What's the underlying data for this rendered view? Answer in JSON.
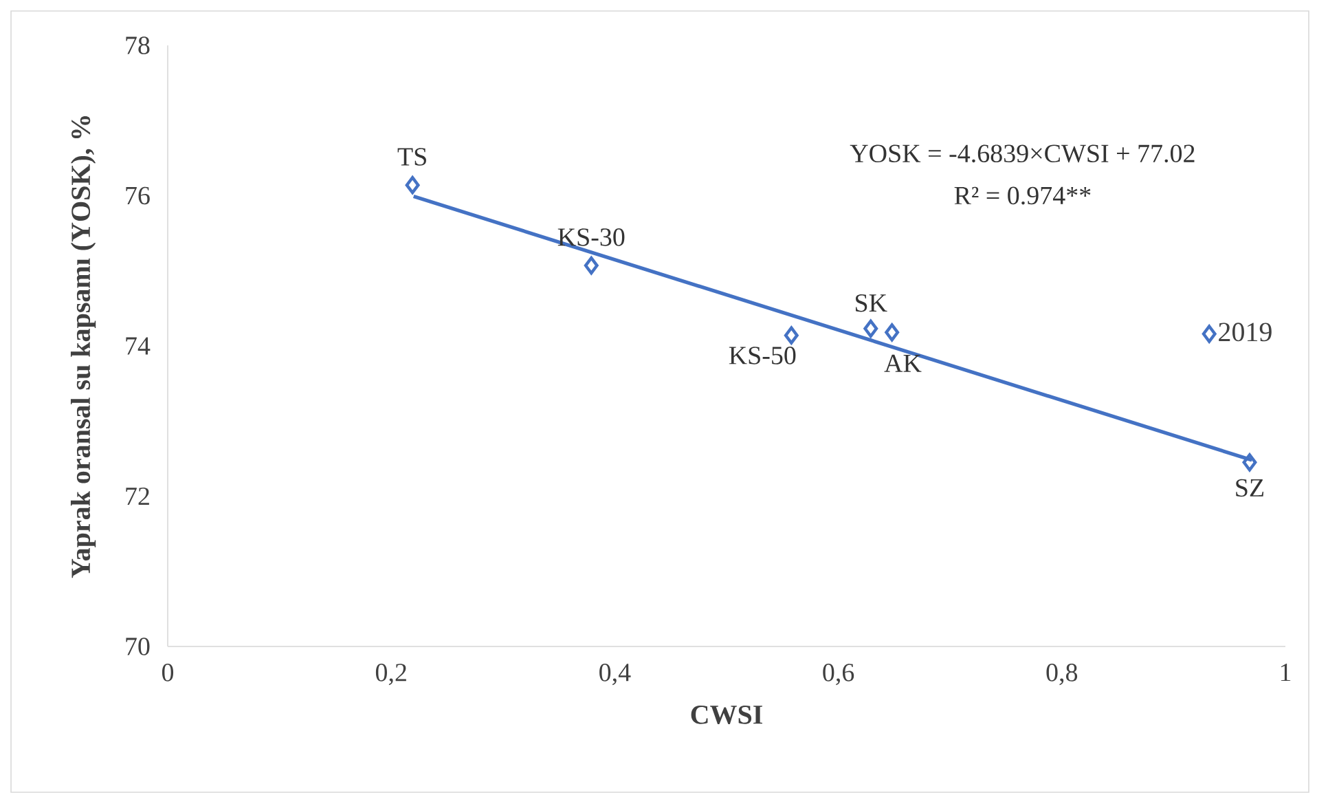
{
  "chart_data": {
    "type": "scatter",
    "xlabel": "CWSI",
    "ylabel": "Yaprak oransal su kapsamı (YOSK), %",
    "xlim": [
      0,
      1
    ],
    "ylim": [
      70,
      78
    ],
    "xticks": [
      0,
      {
        "value": 0.2,
        "label": "0,2"
      },
      {
        "value": 0.4,
        "label": "0,4"
      },
      {
        "value": 0.6,
        "label": "0,6"
      },
      {
        "value": 0.8,
        "label": "0,8"
      },
      1
    ],
    "yticks": [
      70,
      72,
      74,
      76,
      78
    ],
    "series": [
      {
        "name": "2019",
        "color": "#4472c4",
        "x": [
          0.219,
          0.379,
          0.558,
          0.629,
          0.648,
          0.968
        ],
        "values": [
          76.14,
          75.07,
          74.14,
          74.23,
          74.18,
          72.45
        ],
        "marker": "diamond"
      },
      {
        "type": "line",
        "color": "#4472c4",
        "x": [
          0.22,
          0.97
        ],
        "values": [
          75.99,
          72.48
        ],
        "marker": "none"
      }
    ],
    "legend": "right",
    "grid": false,
    "annotations": [
      {
        "text": "TS",
        "x": 0.219,
        "y": 76.14
      },
      {
        "text": "KS-30",
        "x": 0.379,
        "y": 75.07
      },
      {
        "text": "KS-50",
        "x": 0.558,
        "y": 74.14
      },
      {
        "text": "SK",
        "x": 0.629,
        "y": 74.23
      },
      {
        "text": "AK",
        "x": 0.648,
        "y": 74.18
      },
      {
        "text": "SZ",
        "x": 0.968,
        "y": 72.45
      },
      "YOSK = -4.6839×CWSI + 77.02",
      "R² = 0.974**"
    ]
  }
}
